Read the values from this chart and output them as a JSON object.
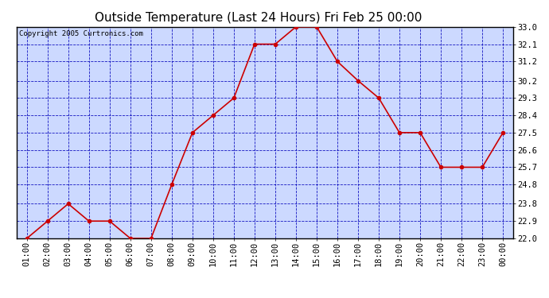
{
  "title": "Outside Temperature (Last 24 Hours) Fri Feb 25 00:00",
  "copyright": "Copyright 2005 Curtronics.com",
  "x_labels": [
    "01:00",
    "02:00",
    "03:00",
    "04:00",
    "05:00",
    "06:00",
    "07:00",
    "08:00",
    "09:00",
    "10:00",
    "11:00",
    "12:00",
    "13:00",
    "14:00",
    "15:00",
    "16:00",
    "17:00",
    "18:00",
    "19:00",
    "20:00",
    "21:00",
    "22:00",
    "23:00",
    "00:00"
  ],
  "y_values": [
    22.0,
    22.9,
    23.8,
    22.9,
    22.9,
    22.0,
    22.0,
    24.8,
    27.5,
    28.4,
    29.3,
    32.1,
    32.1,
    33.0,
    33.0,
    31.2,
    30.2,
    29.3,
    27.5,
    27.5,
    25.7,
    25.7,
    25.7,
    27.5
  ],
  "y_min": 22.0,
  "y_max": 33.0,
  "y_ticks": [
    22.0,
    22.9,
    23.8,
    24.8,
    25.7,
    26.6,
    27.5,
    28.4,
    29.3,
    30.2,
    31.2,
    32.1,
    33.0
  ],
  "line_color": "#cc0000",
  "marker_color": "#cc0000",
  "bg_color": "#ccd9ff",
  "grid_color": "#0000bb",
  "title_fontsize": 11,
  "copyright_fontsize": 6.5,
  "tick_fontsize": 7.5,
  "fig_width": 6.9,
  "fig_height": 3.75,
  "fig_dpi": 100
}
